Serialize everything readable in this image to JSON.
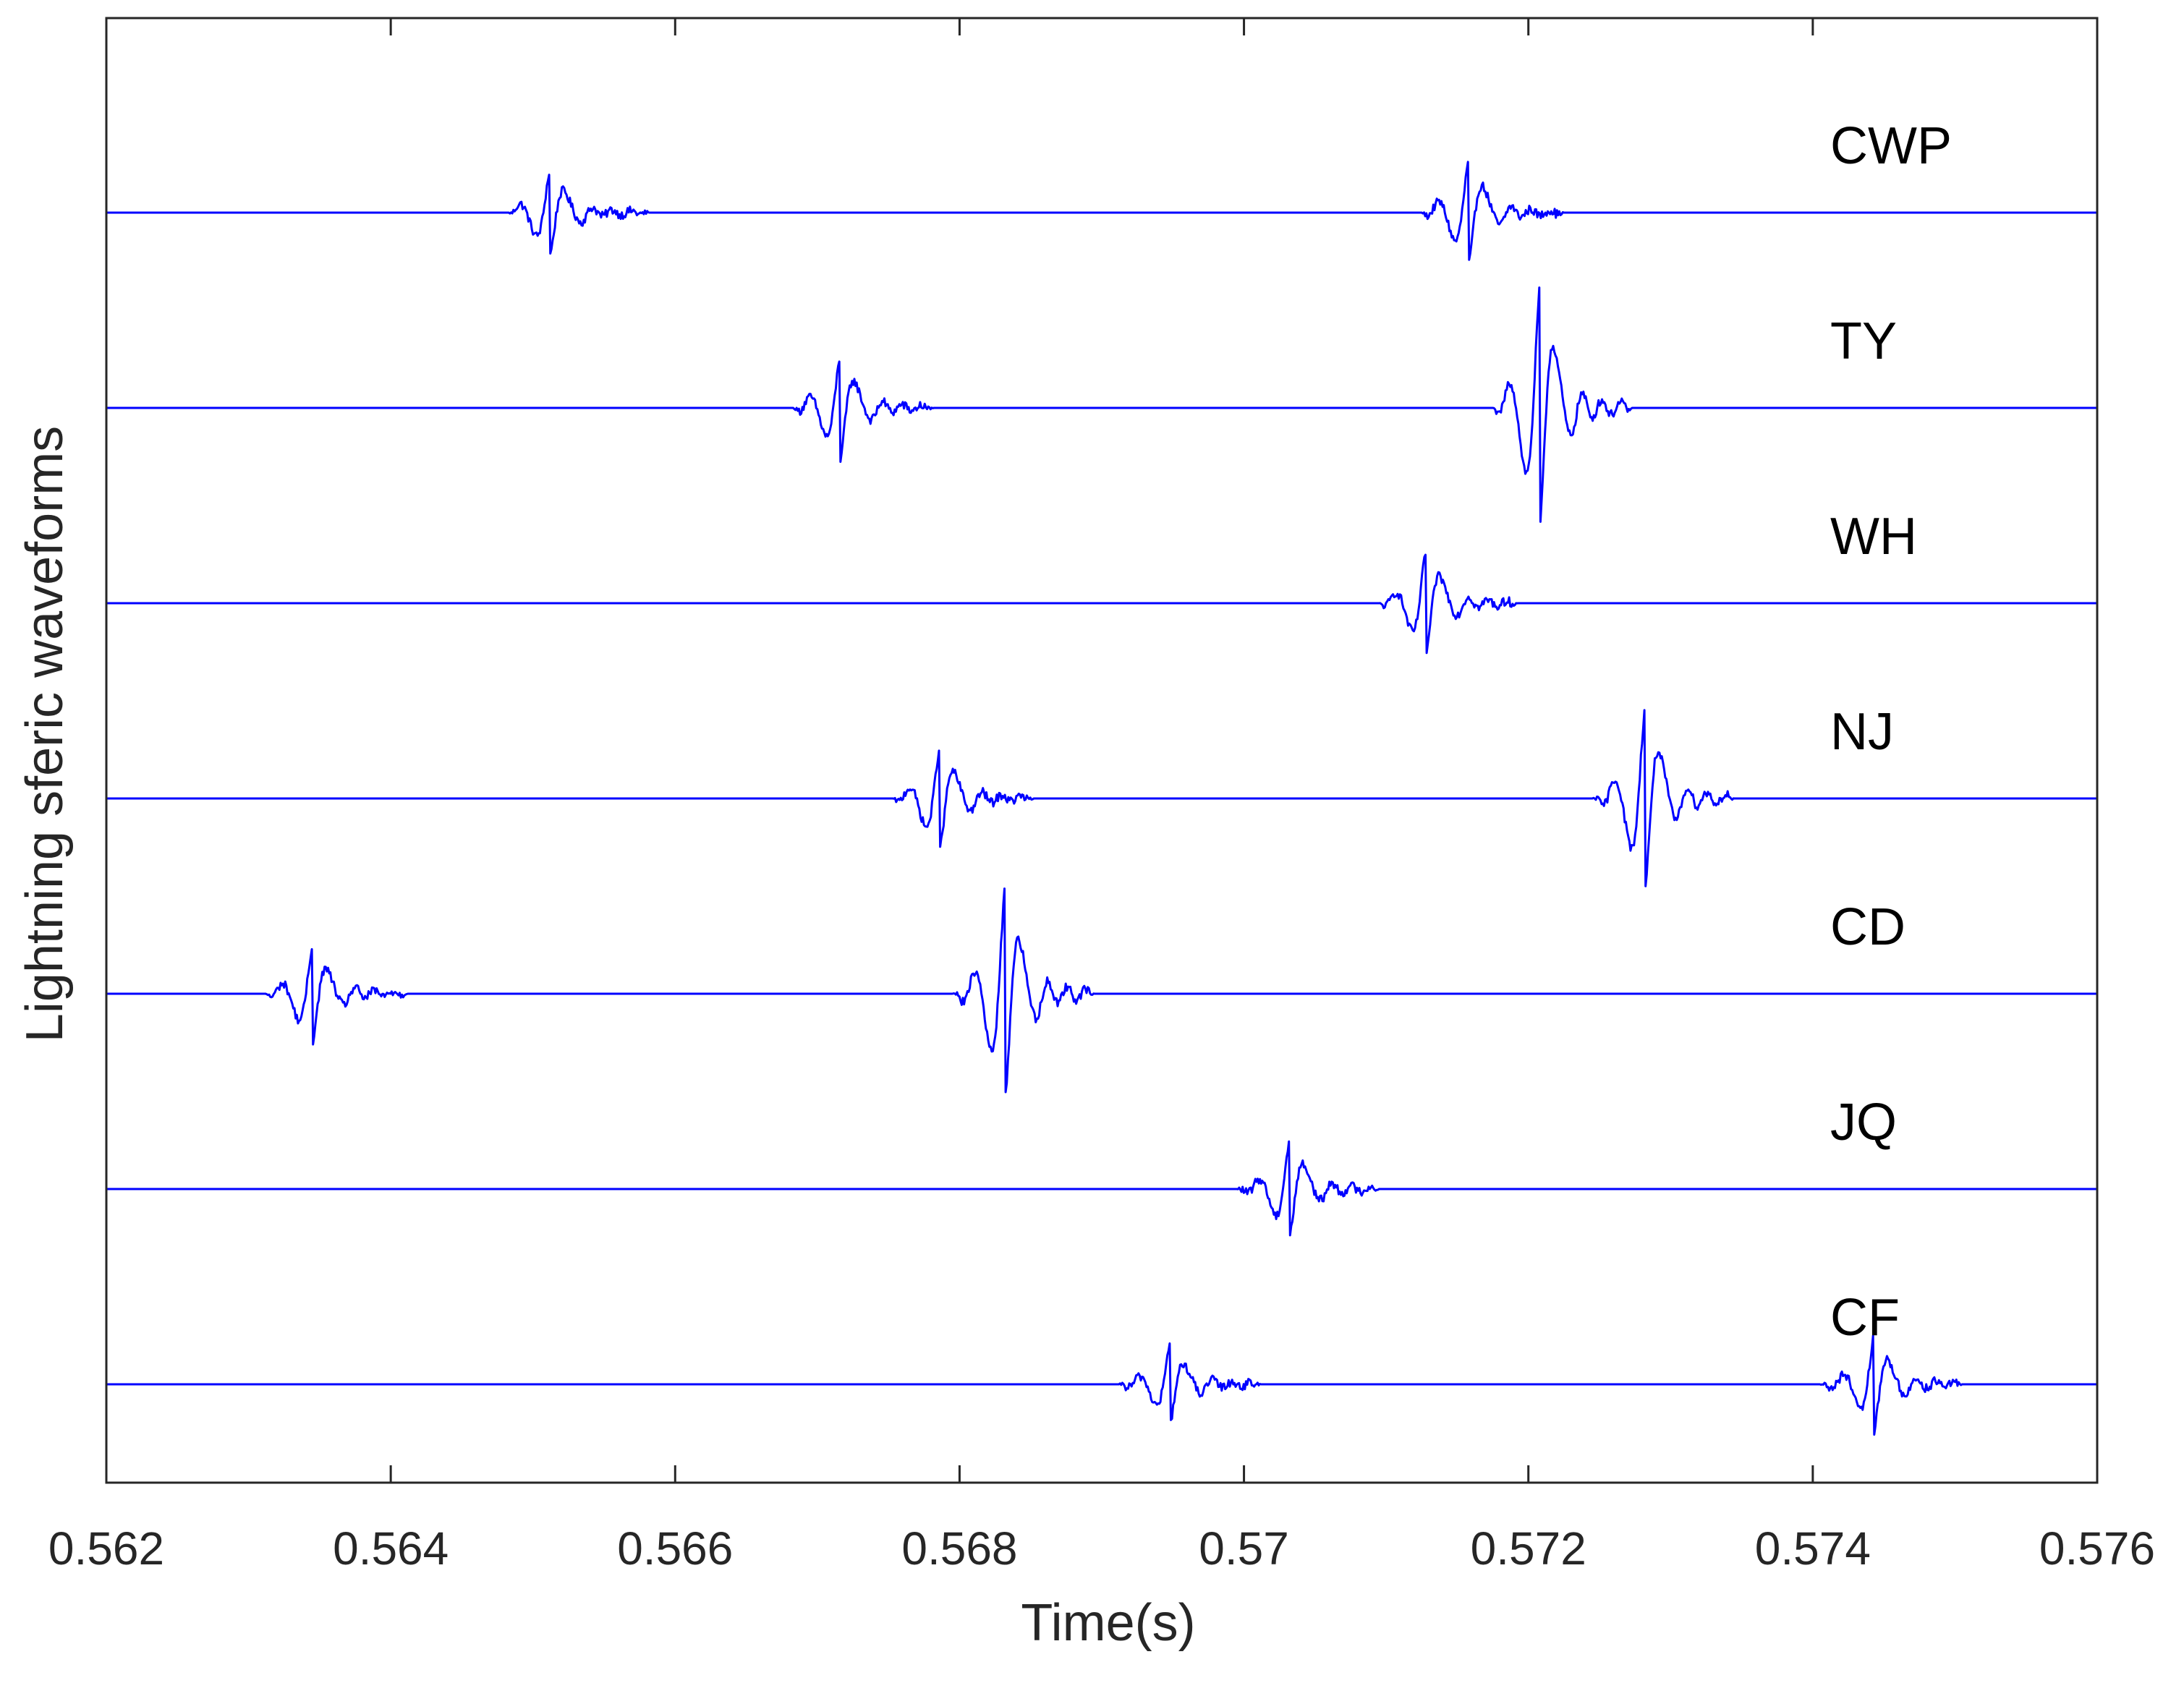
{
  "chart_data": {
    "type": "line",
    "title": "",
    "xlabel": "Time(s)",
    "ylabel": "Lightning sferic waveforms",
    "xlim": [
      0.562,
      0.576
    ],
    "x_tick_values": [
      0.562,
      0.564,
      0.566,
      0.568,
      0.57,
      0.572,
      0.574,
      0.576
    ],
    "x_tick_labels": [
      "0.562",
      "0.564",
      "0.566",
      "0.568",
      "0.57",
      "0.572",
      "0.574",
      "0.576"
    ],
    "y_ticks": "none",
    "grid": false,
    "line_color": "#0000ff",
    "series": [
      {
        "name": "CWP",
        "bursts": [
          {
            "start": 0.56483,
            "end": 0.56582,
            "peak_time": 0.56512,
            "amplitude": 0.22
          },
          {
            "start": 0.57125,
            "end": 0.57225,
            "peak_time": 0.57158,
            "amplitude": 0.27
          }
        ]
      },
      {
        "name": "TY",
        "bursts": [
          {
            "start": 0.56683,
            "end": 0.56782,
            "peak_time": 0.56716,
            "amplitude": 0.27
          },
          {
            "start": 0.57175,
            "end": 0.57273,
            "peak_time": 0.57208,
            "amplitude": 0.62
          }
        ]
      },
      {
        "name": "WH",
        "bursts": [
          {
            "start": 0.57095,
            "end": 0.57193,
            "peak_time": 0.57128,
            "amplitude": 0.27
          }
        ]
      },
      {
        "name": "NJ",
        "bursts": [
          {
            "start": 0.56753,
            "end": 0.56853,
            "peak_time": 0.56786,
            "amplitude": 0.27
          },
          {
            "start": 0.57245,
            "end": 0.57345,
            "peak_time": 0.57282,
            "amplitude": 0.47
          }
        ]
      },
      {
        "name": "CD",
        "bursts": [
          {
            "start": 0.56312,
            "end": 0.56412,
            "peak_time": 0.56345,
            "amplitude": 0.25
          },
          {
            "start": 0.56795,
            "end": 0.56895,
            "peak_time": 0.56832,
            "amplitude": 0.55
          }
        ]
      },
      {
        "name": "JQ",
        "bursts": [
          {
            "start": 0.56995,
            "end": 0.57095,
            "peak_time": 0.57032,
            "amplitude": 0.25
          }
        ]
      },
      {
        "name": "CF",
        "bursts": [
          {
            "start": 0.56912,
            "end": 0.57012,
            "peak_time": 0.56948,
            "amplitude": 0.2
          },
          {
            "start": 0.57405,
            "end": 0.57505,
            "peak_time": 0.57443,
            "amplitude": 0.25
          }
        ]
      }
    ]
  }
}
